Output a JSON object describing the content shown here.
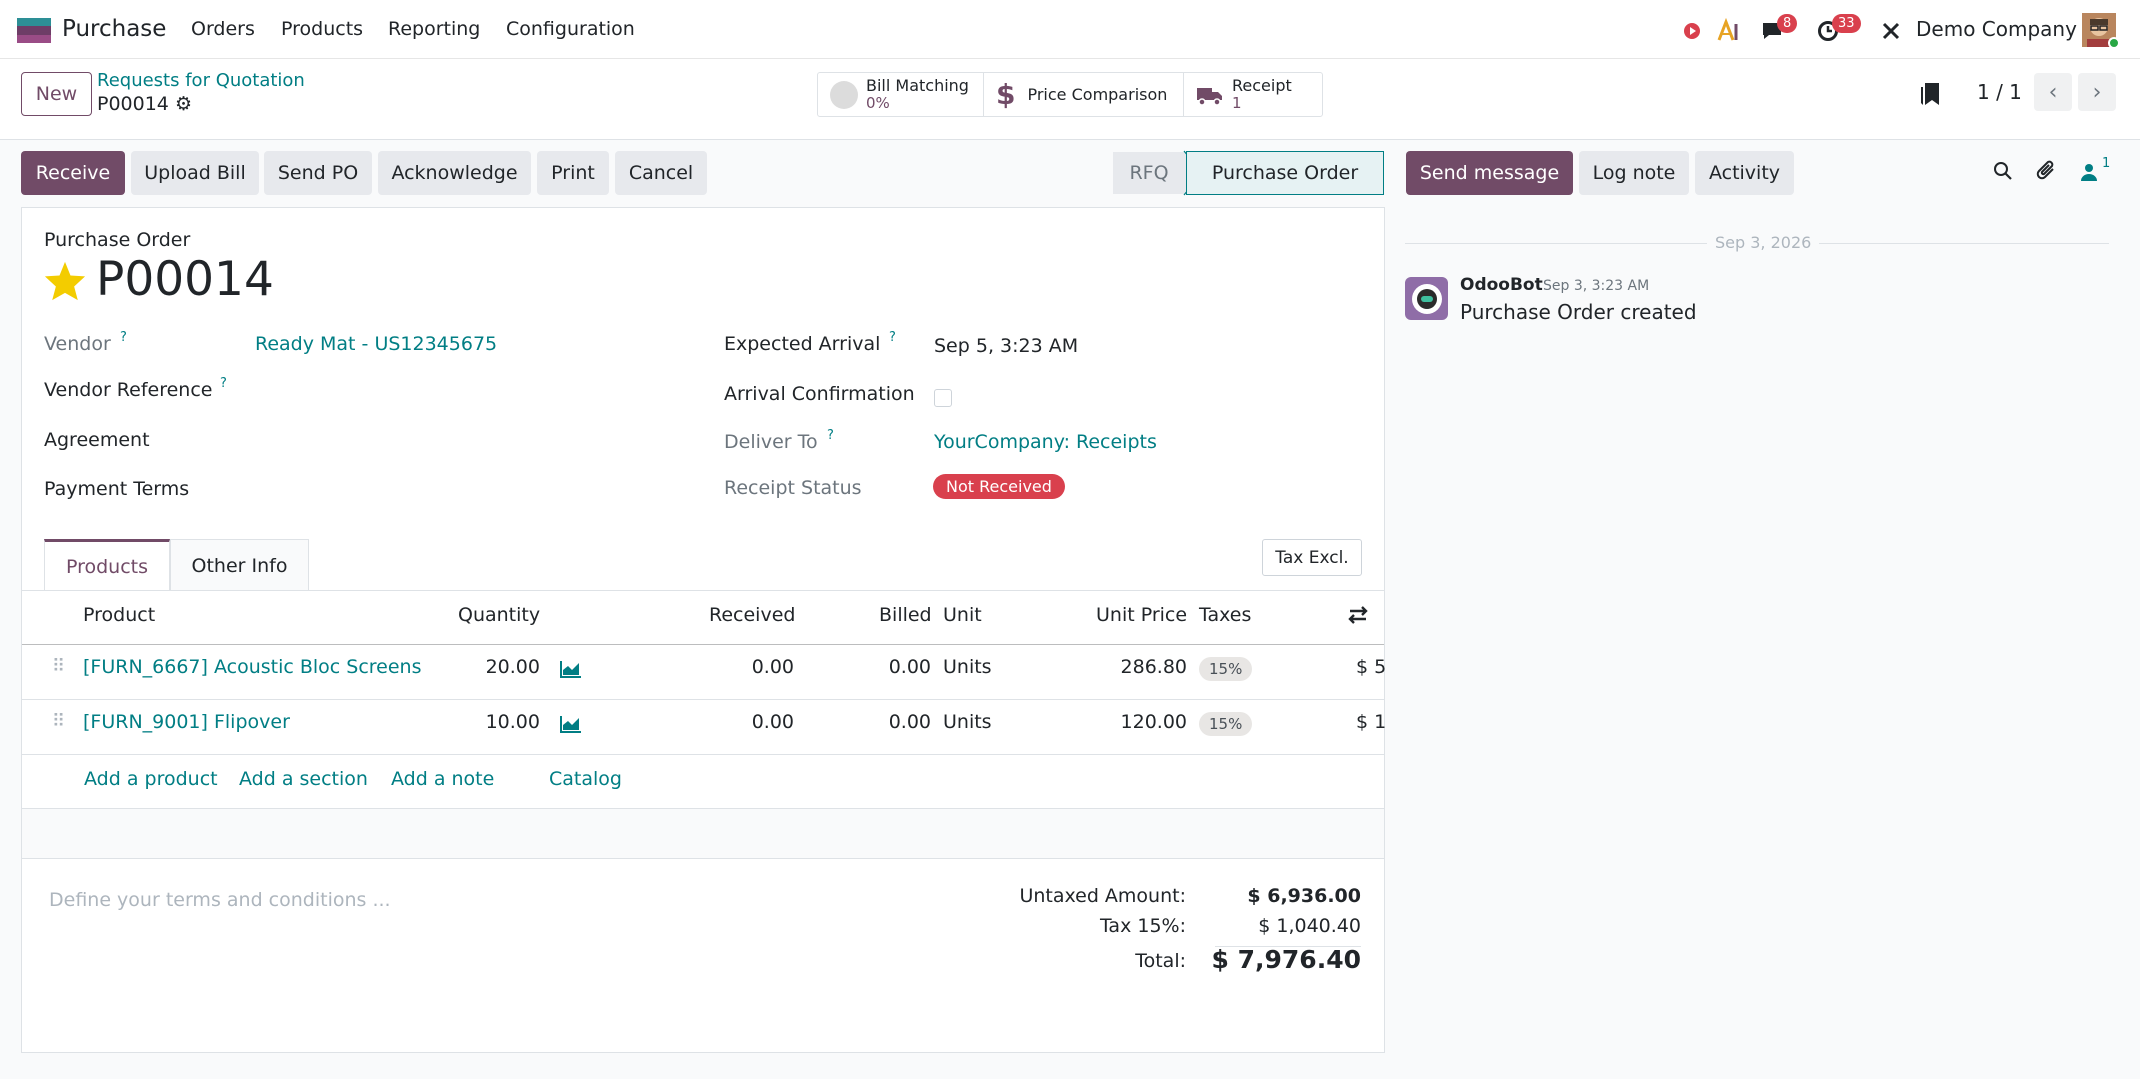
{
  "navbar": {
    "app_name": "Purchase",
    "menus": [
      "Orders",
      "Products",
      "Reporting",
      "Configuration"
    ],
    "messages_count": "8",
    "activities_count": "33",
    "company": "Demo Company"
  },
  "control": {
    "new_label": "New",
    "breadcrumb_parent": "Requests for Quotation",
    "breadcrumb_current": "P00014",
    "smart_buttons": [
      {
        "label": "Bill Matching",
        "value": "0%"
      },
      {
        "label": "Price Comparison",
        "value": ""
      },
      {
        "label": "Receipt",
        "value": "1"
      }
    ],
    "pager": "1 / 1"
  },
  "actions": {
    "receive": "Receive",
    "upload_bill": "Upload Bill",
    "send_po": "Send PO",
    "acknowledge": "Acknowledge",
    "print": "Print",
    "cancel": "Cancel"
  },
  "statusbar": {
    "stages": [
      "RFQ",
      "Purchase Order"
    ],
    "current": "Purchase Order"
  },
  "form": {
    "doc_type": "Purchase Order",
    "name": "P00014",
    "vendor_label": "Vendor",
    "vendor_value": "Ready Mat - US12345675",
    "vendor_ref_label": "Vendor Reference",
    "agreement_label": "Agreement",
    "payment_terms_label": "Payment Terms",
    "expected_arrival_label": "Expected Arrival",
    "expected_arrival_value": "Sep 5, 3:23 AM",
    "arrival_confirmation_label": "Arrival Confirmation",
    "deliver_to_label": "Deliver To",
    "deliver_to_value": "YourCompany: Receipts",
    "receipt_status_label": "Receipt Status",
    "receipt_status_value": "Not Received",
    "help_mark": "?"
  },
  "tabs": {
    "products": "Products",
    "other_info": "Other Info",
    "tax_excl": "Tax Excl."
  },
  "table": {
    "headers": {
      "product": "Product",
      "quantity": "Quantity",
      "received": "Received",
      "billed": "Billed",
      "unit": "Unit",
      "unit_price": "Unit Price",
      "taxes": "Taxes"
    },
    "rows": [
      {
        "product": "[FURN_6667] Acoustic Bloc Screens",
        "quantity": "20.00",
        "received": "0.00",
        "billed": "0.00",
        "unit": "Units",
        "unit_price": "286.80",
        "tax": "15%",
        "subtotal": "$ 5"
      },
      {
        "product": "[FURN_9001] Flipover",
        "quantity": "10.00",
        "received": "0.00",
        "billed": "0.00",
        "unit": "Units",
        "unit_price": "120.00",
        "tax": "15%",
        "subtotal": "$ 1"
      }
    ],
    "add_product": "Add a product",
    "add_section": "Add a section",
    "add_note": "Add a note",
    "catalog": "Catalog"
  },
  "footer": {
    "terms_placeholder": "Define your terms and conditions ...",
    "untaxed_label": "Untaxed Amount:",
    "untaxed_value": "$ 6,936.00",
    "tax_label": "Tax 15%:",
    "tax_value": "$ 1,040.40",
    "total_label": "Total:",
    "total_value": "$ 7,976.40"
  },
  "chatter": {
    "send_message": "Send message",
    "log_note": "Log note",
    "activity": "Activity",
    "followers_count": "1",
    "date_separator": "Sep 3, 2026",
    "messages": [
      {
        "author": "OdooBot",
        "time": "Sep 3, 3:23 AM",
        "body": "Purchase Order created"
      }
    ]
  },
  "colors": {
    "brand": "#714b67",
    "link": "#017e84",
    "danger": "#d9404d"
  }
}
